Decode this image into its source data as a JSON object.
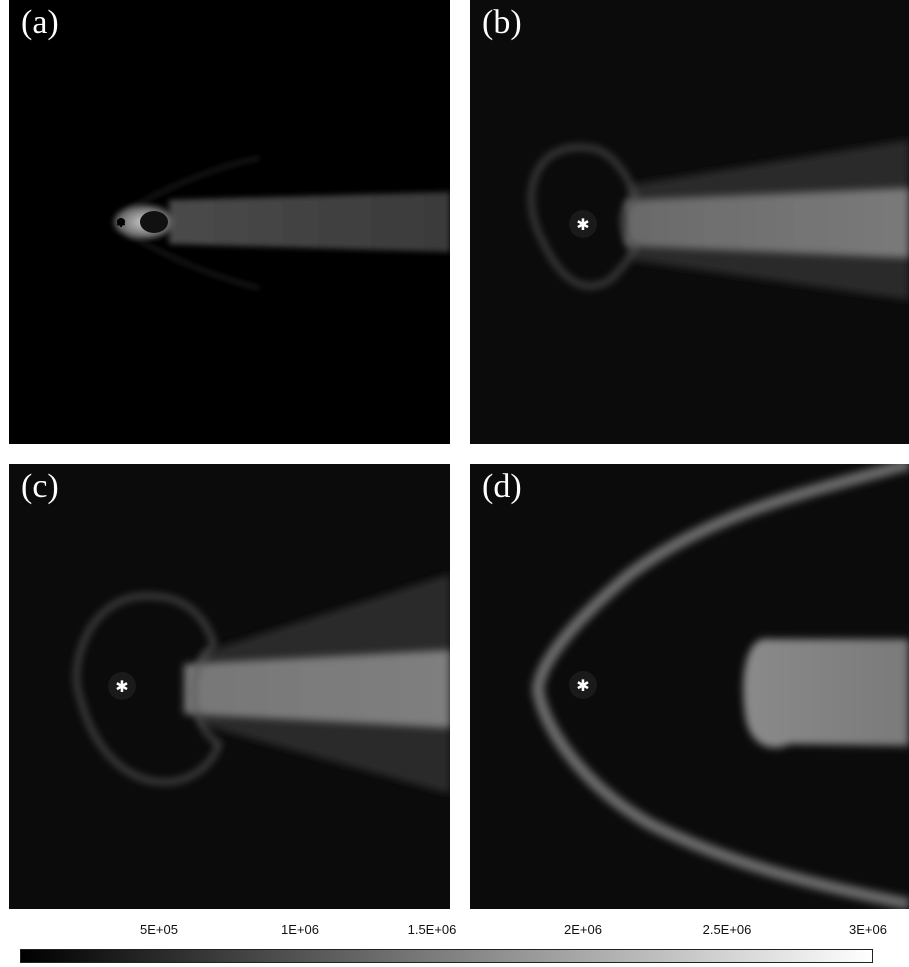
{
  "panels": [
    {
      "id": "a",
      "label": "(a)"
    },
    {
      "id": "b",
      "label": "(b)"
    },
    {
      "id": "c",
      "label": "(c)"
    },
    {
      "id": "d",
      "label": "(d)"
    }
  ],
  "colorbar": {
    "ticks": [
      "5E+05",
      "1E+06",
      "1.5E+06",
      "2E+06",
      "2.5E+06",
      "3E+06"
    ],
    "min_color": "#000000",
    "max_color": "#ffffff"
  }
}
